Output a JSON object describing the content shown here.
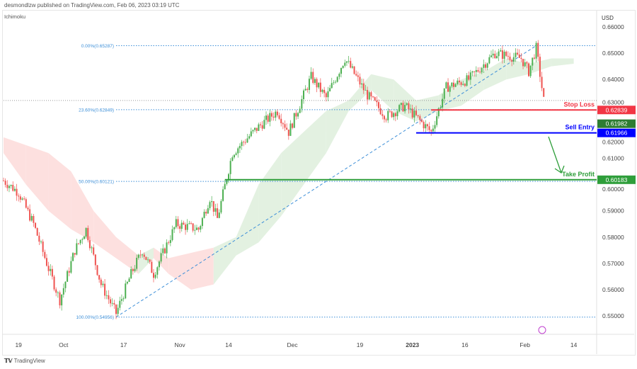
{
  "header": {
    "publisher": "desmondlzw published on TradingView.com, Feb 06, 2023 03:19 UTC"
  },
  "footer": {
    "brand": "TradingView",
    "logo": "TV"
  },
  "chart_data": {
    "type": "candlestick",
    "indicator": "Ichimoku",
    "currency": "USD",
    "y_ticks": [
      "0.66000",
      "0.65000",
      "0.64000",
      "0.63000",
      "0.62000",
      "0.61000",
      "0.60000",
      "0.59000",
      "0.58000",
      "0.57000",
      "0.56000",
      "0.55000"
    ],
    "ylim": [
      0.547,
      0.6665
    ],
    "x_ticks": [
      {
        "label": "19",
        "day": 4
      },
      {
        "label": "Oct",
        "day": 16
      },
      {
        "label": "17",
        "day": 32
      },
      {
        "label": "Nov",
        "day": 47
      },
      {
        "label": "14",
        "day": 60
      },
      {
        "label": "Dec",
        "day": 77
      },
      {
        "label": "19",
        "day": 95
      },
      {
        "label": "2023",
        "day": 109,
        "bold": true
      },
      {
        "label": "16",
        "day": 123
      },
      {
        "label": "Feb",
        "day": 139
      },
      {
        "label": "14",
        "day": 152
      }
    ],
    "price_path": [
      [
        0,
        0.6015
      ],
      [
        4,
        0.597
      ],
      [
        8,
        0.585
      ],
      [
        12,
        0.568
      ],
      [
        15,
        0.556
      ],
      [
        19,
        0.575
      ],
      [
        22,
        0.583
      ],
      [
        26,
        0.562
      ],
      [
        30,
        0.551
      ],
      [
        34,
        0.566
      ],
      [
        37,
        0.575
      ],
      [
        40,
        0.566
      ],
      [
        46,
        0.585
      ],
      [
        52,
        0.583
      ],
      [
        55,
        0.595
      ],
      [
        57,
        0.587
      ],
      [
        61,
        0.612
      ],
      [
        68,
        0.622
      ],
      [
        73,
        0.628
      ],
      [
        76,
        0.62
      ],
      [
        82,
        0.641
      ],
      [
        86,
        0.633
      ],
      [
        91,
        0.648
      ],
      [
        97,
        0.634
      ],
      [
        102,
        0.626
      ],
      [
        107,
        0.63
      ],
      [
        114,
        0.62
      ],
      [
        118,
        0.637
      ],
      [
        124,
        0.64
      ],
      [
        131,
        0.65
      ],
      [
        138,
        0.648
      ],
      [
        140,
        0.643
      ],
      [
        142,
        0.652
      ],
      [
        144,
        0.632
      ]
    ],
    "cloud": [
      [
        0,
        0.612,
        0.618
      ],
      [
        6,
        0.6,
        0.615
      ],
      [
        12,
        0.59,
        0.612
      ],
      [
        18,
        0.583,
        0.605
      ],
      [
        24,
        0.578,
        0.59
      ],
      [
        30,
        0.572,
        0.58
      ],
      [
        36,
        0.566,
        0.573
      ],
      [
        40,
        0.572,
        0.576
      ],
      [
        44,
        0.566,
        0.572
      ],
      [
        50,
        0.56,
        0.574
      ],
      [
        56,
        0.562,
        0.576
      ],
      [
        62,
        0.573,
        0.58
      ],
      [
        68,
        0.578,
        0.6
      ],
      [
        74,
        0.588,
        0.612
      ],
      [
        80,
        0.6,
        0.62
      ],
      [
        86,
        0.612,
        0.628
      ],
      [
        92,
        0.628,
        0.632
      ],
      [
        98,
        0.636,
        0.642
      ],
      [
        104,
        0.628,
        0.64
      ],
      [
        110,
        0.624,
        0.632
      ],
      [
        116,
        0.628,
        0.634
      ],
      [
        122,
        0.63,
        0.64
      ],
      [
        128,
        0.636,
        0.643
      ],
      [
        134,
        0.64,
        0.648
      ],
      [
        140,
        0.642,
        0.646
      ],
      [
        146,
        0.645,
        0.648
      ],
      [
        152,
        0.646,
        0.648
      ]
    ],
    "fib_levels": [
      {
        "label": "0.00%(0.65287)",
        "value": 0.65287
      },
      {
        "label": "23.60%(0.62849)",
        "value": 0.62849
      },
      {
        "label": "50.00%(0.60121)",
        "value": 0.60121
      },
      {
        "label": "100.00%(0.54956)",
        "value": 0.54956
      }
    ],
    "levels": [
      {
        "name": "stop-loss",
        "label": "Stop Loss",
        "value": 0.62839,
        "price_label": "0.62839",
        "color": "#f23645",
        "start_day": 114
      },
      {
        "name": "sell-entry",
        "label": "Sell Entry",
        "value": 0.61966,
        "price_label": "0.61966",
        "color": "#0000ff",
        "start_day": 110
      },
      {
        "name": "take-profit",
        "label": "Take Profit",
        "value": 0.60183,
        "price_label": "0.60183",
        "color": "#2e9e3a",
        "start_day": 59
      }
    ],
    "current_price": {
      "label": "0.61982",
      "value": 0.61982,
      "color": "#2e7d32"
    },
    "last_close_line": 0.632,
    "trendline": [
      [
        30,
        0.54956
      ],
      [
        142,
        0.65287
      ]
    ],
    "colors": {
      "up": "#4caf50",
      "down": "#ef5350",
      "cloud_bull": "#e3f1e1",
      "cloud_bear": "#fde0df",
      "fib": "#3d8fd8"
    }
  }
}
